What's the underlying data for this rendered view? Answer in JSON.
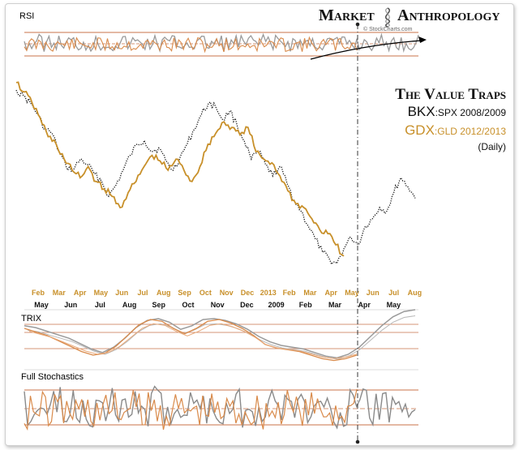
{
  "brand": {
    "part1": "Market",
    "part2": "Anthropology",
    "logo_icon": "dna-helix-icon"
  },
  "watermark": "© StockCharts.com",
  "chart_data": {
    "type": "line",
    "title": "The Value Traps",
    "subtitle_line1": {
      "main": "BKX",
      "rest": ":SPX 2008/2009"
    },
    "subtitle_line2": {
      "main": "GDX",
      "rest": ":GLD 2012/2013"
    },
    "subtitle_line3": "(Daily)",
    "x_labels_top": [
      "Feb",
      "Mar",
      "Apr",
      "May",
      "Jun",
      "Jul",
      "Aug",
      "Sep",
      "Oct",
      "Nov",
      "Dec",
      "2013",
      "Feb",
      "Mar",
      "Apr",
      "May",
      "Jun",
      "Jul",
      "Aug"
    ],
    "x_labels_bottom": [
      "May",
      "Jun",
      "Jul",
      "Aug",
      "Sep",
      "Oct",
      "Nov",
      "Dec",
      "2009",
      "Feb",
      "Mar",
      "Apr",
      "May"
    ],
    "colors": {
      "gdx": "#c8902a",
      "bkx": "#111111",
      "bkx_ind": "#9a9a9a",
      "gdx_ind": "#d98a4a",
      "guide": "#c9734a"
    },
    "series": [
      {
        "name": "BKX:SPX",
        "style": "dotted",
        "values": [
          0.93,
          0.9,
          0.86,
          0.8,
          0.72,
          0.7,
          0.6,
          0.52,
          0.5,
          0.56,
          0.53,
          0.48,
          0.44,
          0.36,
          0.42,
          0.5,
          0.58,
          0.64,
          0.66,
          0.6,
          0.62,
          0.55,
          0.5,
          0.57,
          0.64,
          0.72,
          0.8,
          0.86,
          0.84,
          0.77,
          0.82,
          0.74,
          0.66,
          0.56,
          0.6,
          0.53,
          0.47,
          0.52,
          0.43,
          0.34,
          0.28,
          0.2,
          0.13,
          0.06,
          0.02,
          0.0,
          0.08,
          0.14,
          0.1,
          0.2,
          0.24,
          0.3,
          0.28,
          0.38,
          0.46,
          0.41,
          0.35
        ]
      },
      {
        "name": "GDX:GLD",
        "values": [
          0.97,
          0.92,
          0.86,
          0.78,
          0.68,
          0.64,
          0.56,
          0.5,
          0.46,
          0.52,
          0.44,
          0.4,
          0.36,
          0.3,
          0.38,
          0.44,
          0.52,
          0.58,
          0.55,
          0.5,
          0.56,
          0.5,
          0.44,
          0.52,
          0.64,
          0.7,
          0.76,
          0.73,
          0.69,
          0.73,
          0.6,
          0.56,
          0.54,
          0.47,
          0.39,
          0.32,
          0.3,
          0.24,
          0.18,
          0.16,
          0.1,
          0.04
        ]
      }
    ],
    "panels": [
      {
        "name": "RSI",
        "label": "RSI",
        "levels": [
          70,
          50,
          30
        ]
      },
      {
        "name": "TRIX",
        "label": "TRIX"
      },
      {
        "name": "Full Stochastics",
        "label": "Full Stochastics",
        "levels": [
          80,
          50,
          20
        ]
      }
    ]
  }
}
